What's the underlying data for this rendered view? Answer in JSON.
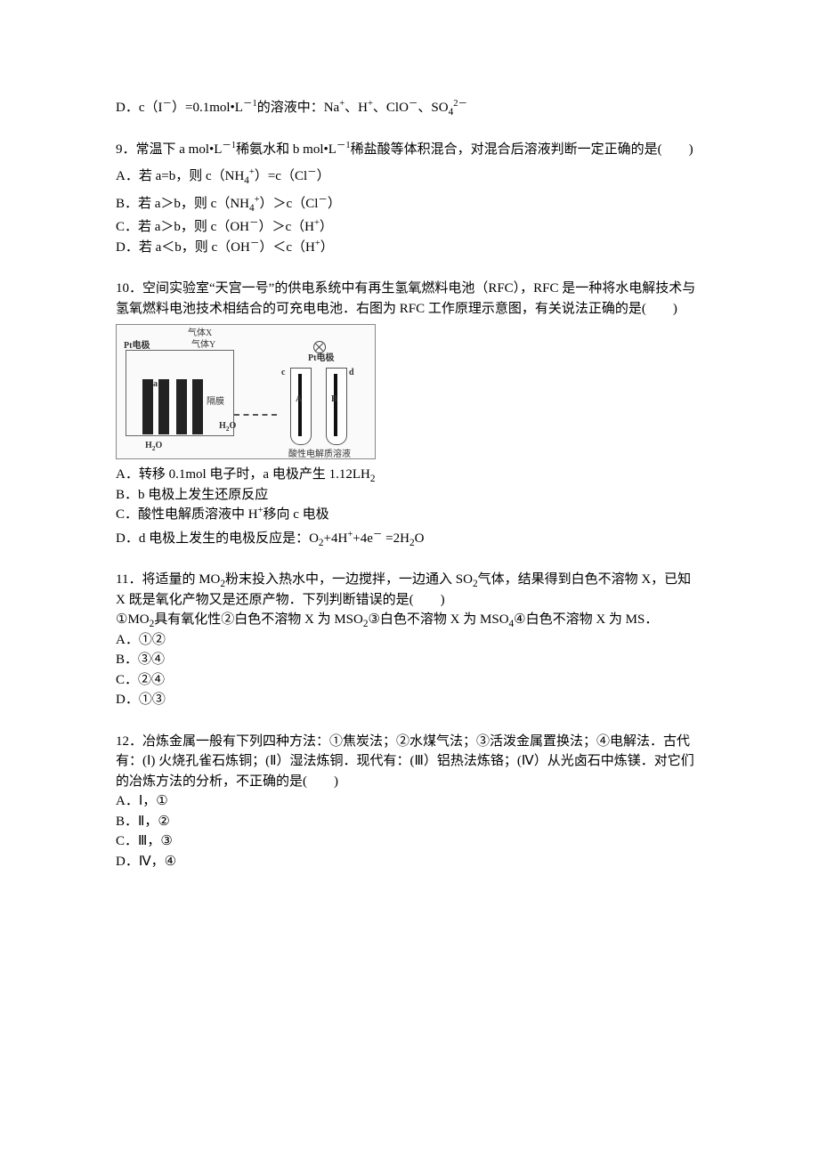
{
  "q8": {
    "optD": "D．c（I⁻）=0.1mol•L⁻¹的溶液中：Na⁺、H⁺、ClO⁻、SO₄²⁻"
  },
  "q9": {
    "stem": "9．常温下 a mol•L⁻¹稀氨水和 b mol•L⁻¹稀盐酸等体积混合，对混合后溶液判断一定正确的是(　　)",
    "optA": "A．若 a=b，则 c（NH₄⁺）=c（Cl⁻）",
    "optB": "B．若 a＞b，则 c（NH₄⁺）＞c（Cl⁻）",
    "optC": "C．若 a＞b，则 c（OH⁻）＞c（H⁺）",
    "optD": "D．若 a＜b，则 c（OH⁻）＜c（H⁺）"
  },
  "q10": {
    "stem": "10．空间实验室“天宫一号”的供电系统中有再生氢氧燃料电池（RFC），RFC 是一种将水电解技术与氢氧燃料电池技术相结合的可充电电池．右图为 RFC 工作原理示意图，有关说法正确的是(　　)",
    "figure": {
      "left_label_pt": "Pt电极",
      "gas_x": "气体X",
      "gas_y": "气体Y",
      "sep": "隔膜",
      "h2o": "H₂O",
      "right_label_pt": "Pt电极",
      "c": "c",
      "d": "d",
      "A": "A",
      "B": "B",
      "ab": "a  b",
      "electrolyte": "酸性电解质溶液"
    },
    "optA": "A．转移 0.1mol 电子时，a 电极产生 1.12LH₂",
    "optB": "B．b 电极上发生还原反应",
    "optC": "C．酸性电解质溶液中 H⁺移向 c 电极",
    "optD": "D．d 电极上发生的电极反应是：O₂+4H⁺+4e⁻ =2H₂O"
  },
  "q11": {
    "stem1": "11．将适量的 MO₂粉末投入热水中，一边搅拌，一边通入 SO₂气体，结果得到白色不溶物 X，已知 X 既是氧化产物又是还原产物．下列判断错误的是(　　)",
    "stem2": "①MO₂具有氧化性②白色不溶物 X 为 MSO₂③白色不溶物 X 为 MSO₄④白色不溶物 X 为 MS．",
    "optA": "A．①②",
    "optB": "B．③④",
    "optC": "C．②④",
    "optD": "D．①③"
  },
  "q12": {
    "stem": "12．冶炼金属一般有下列四种方法：①焦炭法；②水煤气法；③活泼金属置换法；④电解法．古代有：(Ⅰ) 火烧孔雀石炼铜；(Ⅱ）湿法炼铜．现代有：(Ⅲ）铝热法炼铬；(Ⅳ）从光卤石中炼镁．对它们的冶炼方法的分析，不正确的是(　　)",
    "optA": "A．Ⅰ，①",
    "optB": "B．Ⅱ，②",
    "optC": "C．Ⅲ，③",
    "optD": "D．Ⅳ，④"
  }
}
